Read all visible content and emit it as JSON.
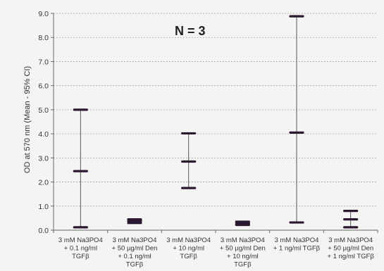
{
  "chart_data": {
    "type": "error-bar",
    "annotation": "N = 3",
    "ylabel": "OD at 570 nm (Mean - 95% CI)",
    "ylim": [
      0,
      9
    ],
    "yticks": [
      "0.0",
      "1.0",
      "2.0",
      "3.0",
      "4.0",
      "5.0",
      "6.0",
      "7.0",
      "8.0",
      "9.0"
    ],
    "grid": "horizontal dotted",
    "categories": [
      [
        "3 mM Na3PO4",
        "+ 0.1 ng/ml",
        "TGFβ"
      ],
      [
        "3 mM Na3PO4",
        "+ 50 µg/ml Den",
        "+ 0.1 ng/ml",
        "TGFβ"
      ],
      [
        "3 mM Na3PO4",
        "+ 10 ng/ml",
        "TGFβ"
      ],
      [
        "3 mM Na3PO4",
        "+ 50 µg/ml Den",
        "+ 10 ng/ml",
        "TGFβ"
      ],
      [
        "3 mM Na3PO4",
        "+ 1 ng/ml TGFβ"
      ],
      [
        "3 mM Na3PO4",
        "+ 50 µg/ml Den",
        "+ 1 ng/ml TGFβ"
      ]
    ],
    "series": [
      {
        "mean": [
          2.45,
          0.38,
          2.85,
          0.28,
          4.05,
          0.45
        ],
        "lower": [
          0.12,
          0.3,
          1.75,
          0.22,
          0.32,
          0.12
        ],
        "upper": [
          5.0,
          0.45,
          4.02,
          0.35,
          8.88,
          0.8
        ]
      }
    ],
    "colors": {
      "marker": "#2b1830",
      "grid": "#8a8a8a",
      "axis": "#666666"
    }
  }
}
